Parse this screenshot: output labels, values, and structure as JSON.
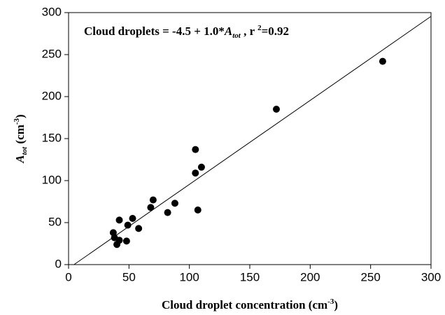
{
  "chart_data": {
    "type": "scatter",
    "annotation": [
      "Cloud droplets = -4.5 + 1.0*",
      "A",
      "tot",
      " , r ",
      "2",
      "=0.92"
    ],
    "x_label": [
      "Cloud droplet concentration (cm",
      "-3",
      ")"
    ],
    "y_label": [
      "A",
      "tot",
      " (cm",
      "-3",
      ")"
    ],
    "x": [
      37,
      38,
      40,
      42,
      42,
      48,
      49,
      53,
      58,
      68,
      70,
      82,
      88,
      105,
      105,
      107,
      110,
      172,
      260
    ],
    "values": [
      38,
      32,
      24,
      29,
      53,
      28,
      47,
      55,
      43,
      68,
      77,
      62,
      73,
      109,
      137,
      65,
      116,
      185,
      242
    ],
    "color": "#000000",
    "fit": {
      "intercept": -4.5,
      "slope": 1.0
    },
    "xlim": [
      0,
      300
    ],
    "xticks": [
      0,
      50,
      100,
      150,
      200,
      250,
      300
    ],
    "ylim": [
      0,
      300
    ],
    "yticks": [
      0,
      50,
      100,
      150,
      200,
      250,
      300
    ],
    "grid": false
  }
}
